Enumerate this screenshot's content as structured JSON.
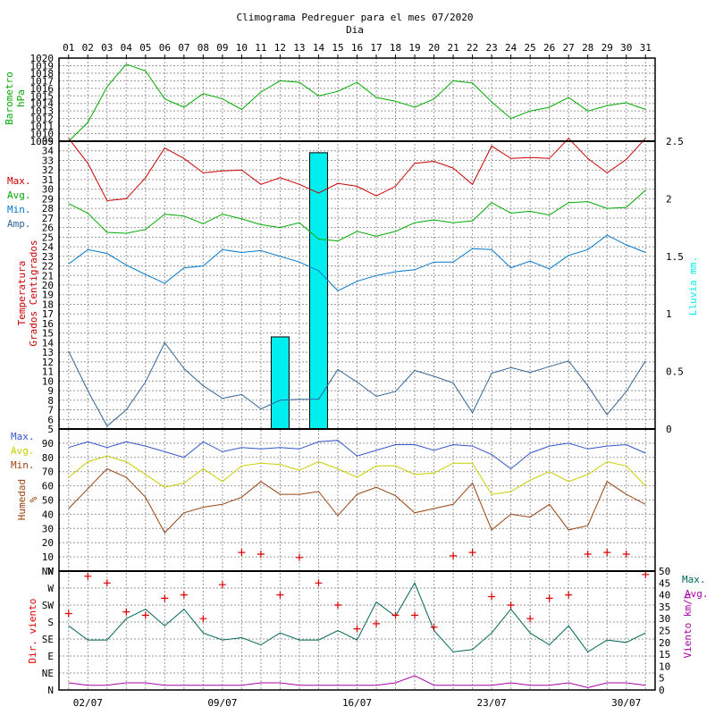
{
  "title": "Climograma Pedreguer para el mes 07/2020",
  "xlabel": "Dia",
  "days": [
    "01",
    "02",
    "03",
    "04",
    "05",
    "06",
    "07",
    "08",
    "09",
    "10",
    "11",
    "12",
    "13",
    "14",
    "15",
    "16",
    "17",
    "18",
    "19",
    "20",
    "21",
    "22",
    "23",
    "24",
    "25",
    "26",
    "27",
    "28",
    "29",
    "30",
    "31"
  ],
  "bottom_dates": [
    "02/07",
    "09/07",
    "16/07",
    "23/07",
    "30/07"
  ],
  "colors": {
    "max": "#cc0000",
    "avg": "#00aa00",
    "min": "#0077cc",
    "amp": "#336699",
    "rain": "#00eeee",
    "hum_max": "#3355cc",
    "hum_avg": "#cccc00",
    "hum_min": "#994411",
    "wind_max": "#006655",
    "wind_avg": "#aa00aa",
    "wind_dir": "#dd0000"
  },
  "chart_data": [
    {
      "type": "line",
      "panel": "barometer",
      "ylabel": "Barometro hPa",
      "ylim": [
        1009,
        1020
      ],
      "yticks": [
        "1009",
        "1010",
        "1011",
        "1012",
        "1013",
        "1014",
        "1015",
        "1016",
        "1017",
        "1018",
        "1019",
        "1020"
      ],
      "series": [
        {
          "name": "Presion",
          "values": [
            1009,
            1011.5,
            1016.2,
            1019.2,
            1018.3,
            1014.6,
            1013.5,
            1015.3,
            1014.6,
            1013.2,
            1015.5,
            1017,
            1016.8,
            1015,
            1015.6,
            1016.8,
            1014.8,
            1014.3,
            1013.5,
            1014.6,
            1017,
            1016.7,
            1014.2,
            1012,
            1013,
            1013.5,
            1014.8,
            1013,
            1013.7,
            1014.1,
            1013.2
          ]
        }
      ]
    },
    {
      "type": "line",
      "panel": "temperature",
      "ylabel": "Temperatura Grados Centigrados",
      "y2label": "Lluvia mm.",
      "ylim": [
        5,
        35
      ],
      "y2lim": [
        0,
        2.5
      ],
      "yticks": [
        "5",
        "6",
        "7",
        "8",
        "9",
        "10",
        "11",
        "12",
        "13",
        "14",
        "15",
        "16",
        "17",
        "18",
        "19",
        "20",
        "21",
        "22",
        "23",
        "24",
        "25",
        "26",
        "27",
        "28",
        "29",
        "30",
        "31",
        "32",
        "33",
        "34",
        "35"
      ],
      "y2ticks": [
        "0",
        "0.5",
        "1",
        "1.5",
        "2",
        "2.5"
      ],
      "legend": [
        "Max.",
        "Avg.",
        "Min.",
        "Amp."
      ],
      "series": [
        {
          "name": "Max.",
          "values": [
            35.3,
            32.7,
            28.8,
            29,
            31.2,
            34.3,
            33.2,
            31.7,
            31.9,
            32,
            30.5,
            31.2,
            30.5,
            29.6,
            30.6,
            30.3,
            29.3,
            30.3,
            32.7,
            32.9,
            32.2,
            30.5,
            34.5,
            33.2,
            33.3,
            33.2,
            35.3,
            33.2,
            31.7,
            33.1,
            35.3
          ]
        },
        {
          "name": "Avg.",
          "values": [
            28.5,
            27.5,
            25.5,
            25.4,
            25.8,
            27.4,
            27.2,
            26.4,
            27.4,
            26.9,
            26.3,
            26,
            26.5,
            24.8,
            24.6,
            25.6,
            25.1,
            25.6,
            26.5,
            26.8,
            26.5,
            26.7,
            28.6,
            27.5,
            27.7,
            27.3,
            28.6,
            28.7,
            28,
            28.1,
            29.9
          ]
        },
        {
          "name": "Min.",
          "values": [
            22.2,
            23.7,
            23.3,
            22.1,
            21.1,
            20.2,
            21.8,
            22,
            23.7,
            23.4,
            23.6,
            23,
            22.4,
            21.5,
            19.4,
            20.4,
            21,
            21.4,
            21.6,
            22.4,
            22.4,
            23.8,
            23.7,
            21.8,
            22.5,
            21.7,
            23.1,
            23.7,
            25.2,
            24.2,
            23.4
          ]
        },
        {
          "name": "Amp.",
          "values": [
            13.1,
            9,
            5.3,
            7,
            9.9,
            14,
            11.3,
            9.5,
            8.2,
            8.6,
            7.1,
            8,
            8.1,
            8.1,
            11.2,
            9.9,
            8.4,
            8.9,
            11.1,
            10.5,
            9.8,
            6.7,
            10.8,
            11.4,
            10.9,
            11.5,
            12.1,
            9.5,
            6.5,
            8.9,
            12.1
          ]
        },
        {
          "name": "Lluvia",
          "type": "bar",
          "values": [
            0,
            0,
            0,
            0,
            0,
            0,
            0,
            0,
            0,
            0,
            0,
            0.8,
            0,
            2.4,
            0,
            0,
            0,
            0,
            0,
            0,
            0,
            0,
            0,
            0,
            0,
            0,
            0,
            0,
            0,
            0,
            0
          ]
        }
      ]
    },
    {
      "type": "line",
      "panel": "humidity",
      "ylabel": "Humedad %",
      "ylim": [
        0,
        100
      ],
      "yticks": [
        "N",
        "10",
        "20",
        "30",
        "40",
        "50",
        "60",
        "70",
        "80",
        "90"
      ],
      "legend": [
        "Max.",
        "Avg.",
        "Min."
      ],
      "series": [
        {
          "name": "Max.",
          "values": [
            87,
            91,
            87,
            91,
            88,
            84,
            80,
            91,
            84,
            87,
            86,
            87,
            86,
            91,
            92,
            81,
            85,
            89,
            89,
            85,
            89,
            88,
            82,
            72,
            83,
            88,
            90,
            86,
            88,
            89,
            83
          ]
        },
        {
          "name": "Avg.",
          "values": [
            66,
            77,
            81,
            77,
            68,
            59,
            62,
            72,
            63,
            74,
            76,
            75,
            71,
            77,
            72,
            66,
            74,
            74,
            68,
            69,
            76,
            76,
            54,
            56,
            64,
            70,
            63,
            68,
            77,
            74,
            60
          ]
        },
        {
          "name": "Min.",
          "values": [
            44,
            58,
            72,
            66,
            52,
            27,
            41,
            45,
            47,
            52,
            63,
            54,
            54,
            56,
            39,
            54,
            59,
            53,
            41,
            44,
            47,
            62,
            29,
            40,
            38,
            47,
            29,
            32,
            63,
            54,
            47
          ]
        }
      ]
    },
    {
      "type": "line",
      "panel": "wind",
      "ylabel": "Dir. viento",
      "y2label": "Viento km/h",
      "ylim": [
        0,
        50
      ],
      "yticks": [
        "N",
        "NE",
        "E",
        "SE",
        "S",
        "SW",
        "W",
        "NW"
      ],
      "y2ticks": [
        "0",
        "5",
        "10",
        "15",
        "20",
        "25",
        "30",
        "35",
        "40",
        "45",
        "50"
      ],
      "legend": [
        "Max.",
        "Avg."
      ],
      "series": [
        {
          "name": "Max.",
          "values": [
            27,
            21,
            21,
            30,
            34,
            27,
            34,
            24,
            21,
            22,
            19,
            24,
            21,
            21,
            25,
            21,
            37,
            31,
            45,
            25,
            16,
            17,
            24,
            34,
            24,
            19,
            27,
            16,
            21,
            20,
            24
          ]
        },
        {
          "name": "Avg.",
          "values": [
            3,
            2,
            2,
            3,
            3,
            2,
            2,
            2,
            2,
            2,
            3,
            3,
            2,
            2,
            2,
            2,
            2,
            3,
            6,
            2,
            2,
            2,
            2,
            3,
            2,
            2,
            3,
            1,
            3,
            3,
            2
          ]
        },
        {
          "name": "Dir.",
          "type": "scatter",
          "values": [
            4.5,
            6.7,
            6.3,
            4.6,
            4.4,
            5.4,
            5.6,
            4.2,
            6.2,
            8.1,
            8.0,
            5.6,
            7.8,
            6.3,
            5,
            3.6,
            3.9,
            4.4,
            4.4,
            3.7,
            7.9,
            8.1,
            5.5,
            5,
            4.2,
            5.4,
            5.6,
            8,
            8.1,
            8,
            6.8
          ]
        }
      ]
    }
  ]
}
